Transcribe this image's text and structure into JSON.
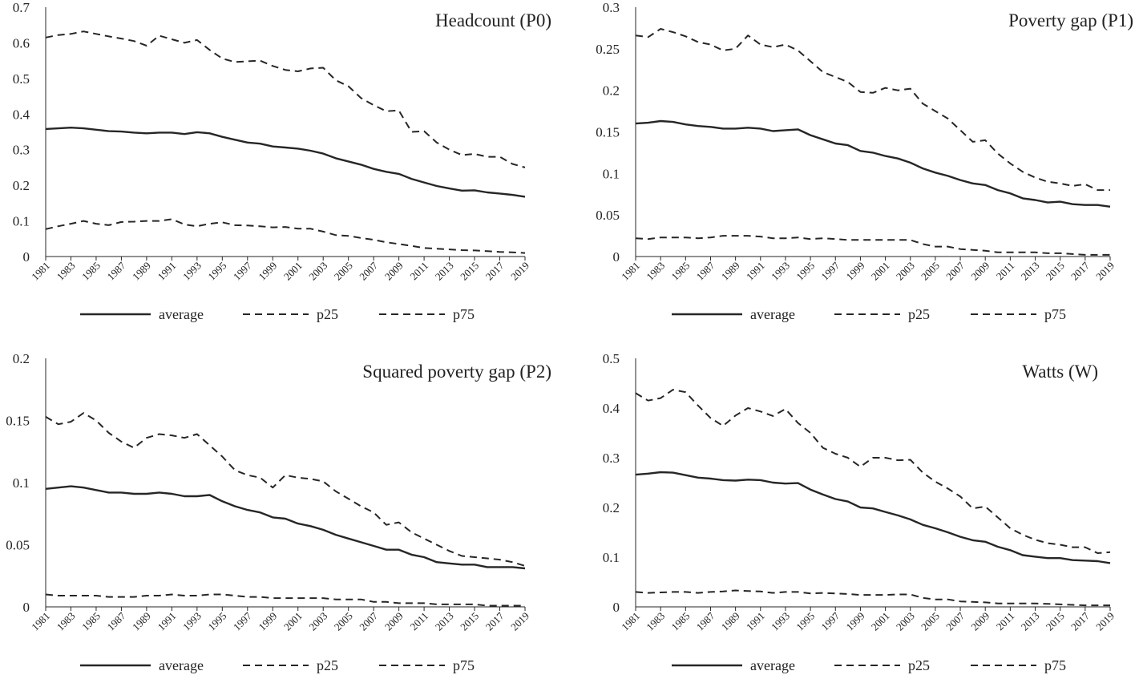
{
  "years": [
    1981,
    1982,
    1983,
    1984,
    1985,
    1986,
    1987,
    1988,
    1989,
    1990,
    1991,
    1992,
    1993,
    1994,
    1995,
    1996,
    1997,
    1998,
    1999,
    2000,
    2001,
    2002,
    2003,
    2004,
    2005,
    2006,
    2007,
    2008,
    2009,
    2010,
    2011,
    2012,
    2013,
    2014,
    2015,
    2016,
    2017,
    2018,
    2019
  ],
  "colors": {
    "line": "#262626",
    "axis": "#262626"
  },
  "chart_data": [
    {
      "type": "line",
      "title": "Headcount (P0)",
      "x_tick_labels": [
        "1981",
        "1983",
        "1985",
        "1987",
        "1989",
        "1991",
        "1993",
        "1995",
        "1997",
        "1999",
        "2001",
        "2003",
        "2005",
        "2007",
        "2009",
        "2011",
        "2013",
        "2015",
        "2017",
        "2019"
      ],
      "ylim": [
        0,
        0.7
      ],
      "y_ticks": [
        0,
        0.1,
        0.2,
        0.3,
        0.4,
        0.5,
        0.6,
        0.7
      ],
      "y_tick_labels": [
        "0",
        "0.1",
        "0.2",
        "0.3",
        "0.4",
        "0.5",
        "0.6",
        "0.7"
      ],
      "legend_position": "bottom",
      "series": [
        {
          "name": "average",
          "style": "solid",
          "values": [
            0.358,
            0.36,
            0.362,
            0.36,
            0.356,
            0.352,
            0.351,
            0.348,
            0.346,
            0.348,
            0.348,
            0.344,
            0.349,
            0.346,
            0.336,
            0.328,
            0.32,
            0.317,
            0.309,
            0.306,
            0.303,
            0.297,
            0.289,
            0.276,
            0.267,
            0.258,
            0.246,
            0.238,
            0.232,
            0.218,
            0.208,
            0.198,
            0.191,
            0.185,
            0.186,
            0.18,
            0.177,
            0.173,
            0.168
          ]
        },
        {
          "name": "p25",
          "style": "dashed",
          "values": [
            0.077,
            0.085,
            0.092,
            0.1,
            0.092,
            0.088,
            0.097,
            0.098,
            0.1,
            0.1,
            0.105,
            0.09,
            0.085,
            0.092,
            0.096,
            0.088,
            0.087,
            0.085,
            0.082,
            0.083,
            0.078,
            0.078,
            0.07,
            0.06,
            0.058,
            0.052,
            0.047,
            0.04,
            0.035,
            0.03,
            0.024,
            0.022,
            0.02,
            0.018,
            0.017,
            0.015,
            0.013,
            0.012,
            0.01
          ]
        },
        {
          "name": "p75",
          "style": "dashed",
          "values": [
            0.615,
            0.622,
            0.625,
            0.632,
            0.625,
            0.618,
            0.612,
            0.605,
            0.592,
            0.62,
            0.61,
            0.6,
            0.608,
            0.58,
            0.556,
            0.546,
            0.548,
            0.55,
            0.535,
            0.524,
            0.52,
            0.528,
            0.53,
            0.495,
            0.478,
            0.445,
            0.425,
            0.408,
            0.41,
            0.35,
            0.352,
            0.32,
            0.3,
            0.285,
            0.288,
            0.28,
            0.28,
            0.26,
            0.25
          ]
        }
      ]
    },
    {
      "type": "line",
      "title": "Poverty gap (P1)",
      "x_tick_labels": [
        "1981",
        "1983",
        "1985",
        "1987",
        "1989",
        "1991",
        "1993",
        "1995",
        "1997",
        "1999",
        "2001",
        "2003",
        "2005",
        "2007",
        "2009",
        "2011",
        "2013",
        "2015",
        "2017",
        "2019"
      ],
      "ylim": [
        0,
        0.3
      ],
      "y_ticks": [
        0,
        0.05,
        0.1,
        0.15,
        0.2,
        0.25,
        0.3
      ],
      "y_tick_labels": [
        "0",
        "0.05",
        "0.1",
        "0.15",
        "0.2",
        "0.25",
        "0.3"
      ],
      "legend_position": "bottom",
      "series": [
        {
          "name": "average",
          "style": "solid",
          "values": [
            0.16,
            0.161,
            0.163,
            0.162,
            0.159,
            0.157,
            0.156,
            0.154,
            0.154,
            0.155,
            0.154,
            0.151,
            0.152,
            0.153,
            0.146,
            0.141,
            0.136,
            0.134,
            0.127,
            0.125,
            0.121,
            0.118,
            0.113,
            0.106,
            0.101,
            0.097,
            0.092,
            0.088,
            0.086,
            0.08,
            0.076,
            0.07,
            0.068,
            0.065,
            0.066,
            0.063,
            0.062,
            0.062,
            0.06
          ]
        },
        {
          "name": "p25",
          "style": "dashed",
          "values": [
            0.022,
            0.021,
            0.023,
            0.023,
            0.023,
            0.022,
            0.023,
            0.025,
            0.025,
            0.025,
            0.024,
            0.022,
            0.022,
            0.023,
            0.021,
            0.022,
            0.021,
            0.02,
            0.02,
            0.02,
            0.02,
            0.02,
            0.02,
            0.015,
            0.012,
            0.012,
            0.009,
            0.008,
            0.007,
            0.005,
            0.005,
            0.005,
            0.005,
            0.004,
            0.004,
            0.003,
            0.002,
            0.002,
            0.002
          ]
        },
        {
          "name": "p75",
          "style": "dashed",
          "values": [
            0.266,
            0.264,
            0.274,
            0.27,
            0.265,
            0.258,
            0.255,
            0.248,
            0.25,
            0.266,
            0.255,
            0.252,
            0.255,
            0.248,
            0.235,
            0.222,
            0.216,
            0.21,
            0.198,
            0.197,
            0.203,
            0.2,
            0.202,
            0.184,
            0.175,
            0.166,
            0.152,
            0.138,
            0.14,
            0.124,
            0.112,
            0.102,
            0.095,
            0.09,
            0.088,
            0.085,
            0.087,
            0.08,
            0.08
          ]
        }
      ]
    },
    {
      "type": "line",
      "title": "Squared poverty gap (P2)",
      "x_tick_labels": [
        "1981",
        "1983",
        "1985",
        "1987",
        "1989",
        "1991",
        "1993",
        "1995",
        "1997",
        "1999",
        "2001",
        "2003",
        "2005",
        "2007",
        "2009",
        "2011",
        "2013",
        "2015",
        "2017",
        "2019"
      ],
      "ylim": [
        0,
        0.2
      ],
      "y_ticks": [
        0,
        0.05,
        0.1,
        0.15,
        0.2
      ],
      "y_tick_labels": [
        "0",
        "0.05",
        "0.1",
        "0.15",
        "0.2"
      ],
      "legend_position": "bottom",
      "series": [
        {
          "name": "average",
          "style": "solid",
          "values": [
            0.095,
            0.096,
            0.097,
            0.096,
            0.094,
            0.092,
            0.092,
            0.091,
            0.091,
            0.092,
            0.091,
            0.089,
            0.089,
            0.09,
            0.085,
            0.081,
            0.078,
            0.076,
            0.072,
            0.071,
            0.067,
            0.065,
            0.062,
            0.058,
            0.055,
            0.052,
            0.049,
            0.046,
            0.046,
            0.042,
            0.04,
            0.036,
            0.035,
            0.034,
            0.034,
            0.032,
            0.032,
            0.032,
            0.031
          ]
        },
        {
          "name": "p25",
          "style": "dashed",
          "values": [
            0.01,
            0.009,
            0.009,
            0.009,
            0.009,
            0.008,
            0.008,
            0.008,
            0.009,
            0.009,
            0.01,
            0.009,
            0.009,
            0.01,
            0.01,
            0.009,
            0.008,
            0.008,
            0.007,
            0.007,
            0.007,
            0.007,
            0.007,
            0.006,
            0.006,
            0.006,
            0.004,
            0.004,
            0.003,
            0.003,
            0.003,
            0.002,
            0.002,
            0.002,
            0.002,
            0.001,
            0.001,
            0.001,
            0.001
          ]
        },
        {
          "name": "p75",
          "style": "dashed",
          "values": [
            0.153,
            0.147,
            0.149,
            0.156,
            0.15,
            0.14,
            0.133,
            0.128,
            0.136,
            0.139,
            0.138,
            0.136,
            0.139,
            0.13,
            0.121,
            0.11,
            0.106,
            0.104,
            0.096,
            0.106,
            0.104,
            0.103,
            0.101,
            0.093,
            0.087,
            0.081,
            0.076,
            0.066,
            0.068,
            0.06,
            0.055,
            0.05,
            0.045,
            0.041,
            0.04,
            0.039,
            0.038,
            0.036,
            0.033
          ]
        }
      ]
    },
    {
      "type": "line",
      "title": "Watts (W)",
      "x_tick_labels": [
        "1981",
        "1983",
        "1985",
        "1987",
        "1989",
        "1991",
        "1993",
        "1995",
        "1997",
        "1999",
        "2001",
        "2003",
        "2005",
        "2007",
        "2009",
        "2011",
        "2013",
        "2015",
        "2017",
        "2019"
      ],
      "ylim": [
        0,
        0.5
      ],
      "y_ticks": [
        0,
        0.1,
        0.2,
        0.3,
        0.4,
        0.5
      ],
      "y_tick_labels": [
        "0",
        "0.1",
        "0.2",
        "0.3",
        "0.4",
        "0.5"
      ],
      "legend_position": "bottom",
      "series": [
        {
          "name": "average",
          "style": "solid",
          "values": [
            0.266,
            0.268,
            0.271,
            0.27,
            0.265,
            0.26,
            0.258,
            0.255,
            0.254,
            0.256,
            0.255,
            0.25,
            0.248,
            0.249,
            0.236,
            0.226,
            0.217,
            0.212,
            0.2,
            0.198,
            0.191,
            0.184,
            0.176,
            0.165,
            0.158,
            0.15,
            0.141,
            0.134,
            0.131,
            0.121,
            0.114,
            0.104,
            0.101,
            0.098,
            0.098,
            0.094,
            0.093,
            0.092,
            0.088
          ]
        },
        {
          "name": "p25",
          "style": "dashed",
          "values": [
            0.03,
            0.028,
            0.029,
            0.03,
            0.03,
            0.028,
            0.03,
            0.031,
            0.033,
            0.032,
            0.031,
            0.028,
            0.03,
            0.03,
            0.027,
            0.028,
            0.027,
            0.026,
            0.024,
            0.024,
            0.024,
            0.025,
            0.025,
            0.018,
            0.015,
            0.015,
            0.011,
            0.01,
            0.009,
            0.007,
            0.007,
            0.007,
            0.007,
            0.006,
            0.005,
            0.004,
            0.003,
            0.003,
            0.003
          ]
        },
        {
          "name": "p75",
          "style": "dashed",
          "values": [
            0.43,
            0.415,
            0.42,
            0.437,
            0.432,
            0.405,
            0.38,
            0.364,
            0.385,
            0.4,
            0.393,
            0.384,
            0.398,
            0.37,
            0.35,
            0.32,
            0.308,
            0.3,
            0.282,
            0.3,
            0.3,
            0.295,
            0.296,
            0.27,
            0.252,
            0.238,
            0.222,
            0.198,
            0.202,
            0.18,
            0.158,
            0.145,
            0.135,
            0.128,
            0.125,
            0.12,
            0.12,
            0.108,
            0.11
          ]
        }
      ]
    }
  ]
}
